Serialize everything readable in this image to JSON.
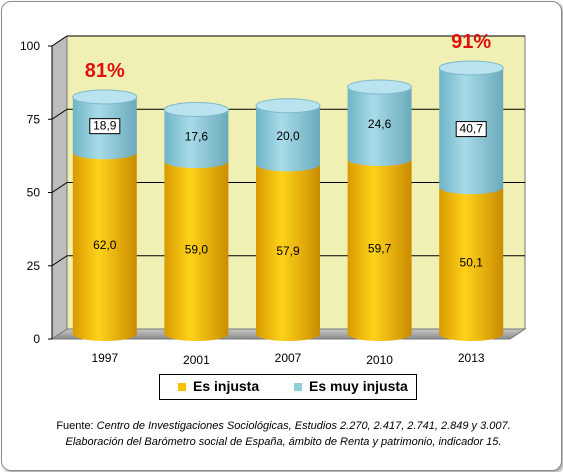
{
  "chart_data": {
    "type": "bar",
    "stacked": true,
    "categories": [
      "1997",
      "2001",
      "2007",
      "2010",
      "2013"
    ],
    "series": [
      {
        "name": "Es injusta",
        "values": [
          62.0,
          59.0,
          57.9,
          59.7,
          50.1
        ],
        "labels": [
          "62,0",
          "59,0",
          "57,9",
          "59,7",
          "50,1"
        ],
        "color": "#f9c000"
      },
      {
        "name": "Es muy injusta",
        "values": [
          18.9,
          17.6,
          20.0,
          24.6,
          40.7
        ],
        "labels": [
          "18,9",
          "17,6",
          "20,0",
          "24,6",
          "40,7"
        ],
        "color": "#92cddc"
      }
    ],
    "annotations": [
      {
        "category": "1997",
        "text": "81%",
        "color": "#e01010"
      },
      {
        "category": "2013",
        "text": "91%",
        "color": "#e01010"
      }
    ],
    "boxed_labels": [
      "1997",
      "2013"
    ],
    "yticks": [
      "0",
      "25",
      "50",
      "75",
      "100"
    ],
    "ylim": [
      0,
      100
    ],
    "grid": true,
    "legend_position": "bottom",
    "wall_color": "#f0f0b4"
  },
  "source": {
    "prefix": "Fuente: ",
    "line1": "Centro de Investigaciones Sociológicas, Estudios 2.270, 2.417, 2.741, 2.849 y 3.007.",
    "line2": "Elaboración del Barómetro social de España, ámbito de Renta y patrimonio, indicador 15."
  }
}
